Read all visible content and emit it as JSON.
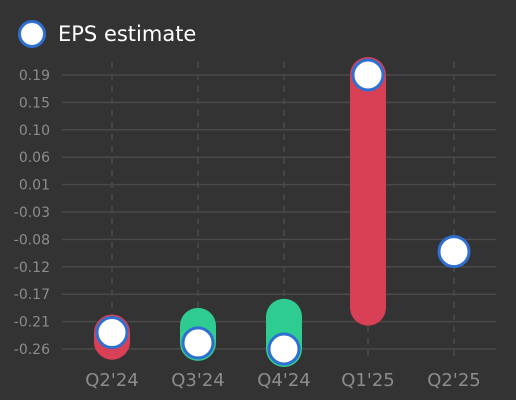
{
  "chart_data": {
    "type": "range-dot",
    "categories": [
      "Q2'24",
      "Q3'24",
      "Q4'24",
      "Q1'25",
      "Q2'25"
    ],
    "series": [
      {
        "name": "EPS estimate",
        "values": [
          -0.233,
          -0.25,
          -0.26,
          0.19,
          -0.1
        ]
      }
    ],
    "actual_low_to_high_bars": [
      {
        "category": "Q2'24",
        "from": -0.233,
        "to": -0.248,
        "color": "#d93f55"
      },
      {
        "category": "Q3'24",
        "from": -0.25,
        "to": -0.222,
        "color": "#2ecc91"
      },
      {
        "category": "Q4'24",
        "from": -0.26,
        "to": -0.207,
        "color": "#2ecc91"
      },
      {
        "category": "Q1'25",
        "from": 0.19,
        "to": -0.192,
        "color": "#d93f55"
      }
    ],
    "y_ticks": [
      "0.19",
      "0.15",
      "0.10",
      "0.06",
      "0.01",
      "-0.03",
      "-0.08",
      "-0.12",
      "-0.17",
      "-0.21",
      "-0.26"
    ],
    "y_tick_values": [
      0.19,
      0.145,
      0.1,
      0.055,
      0.01,
      -0.035,
      -0.08,
      -0.125,
      -0.17,
      -0.215,
      -0.26
    ],
    "ylim": [
      -0.26,
      0.19
    ],
    "grid": true,
    "legend": "top-left",
    "colors": {
      "background": "#333333",
      "grid": "#4a4a4a",
      "tick_text": "#8c8c8c",
      "marker_fill": "#ffffff",
      "marker_stroke": "#2f6fd0",
      "positive": "#2ecc91",
      "negative": "#d93f55"
    }
  }
}
